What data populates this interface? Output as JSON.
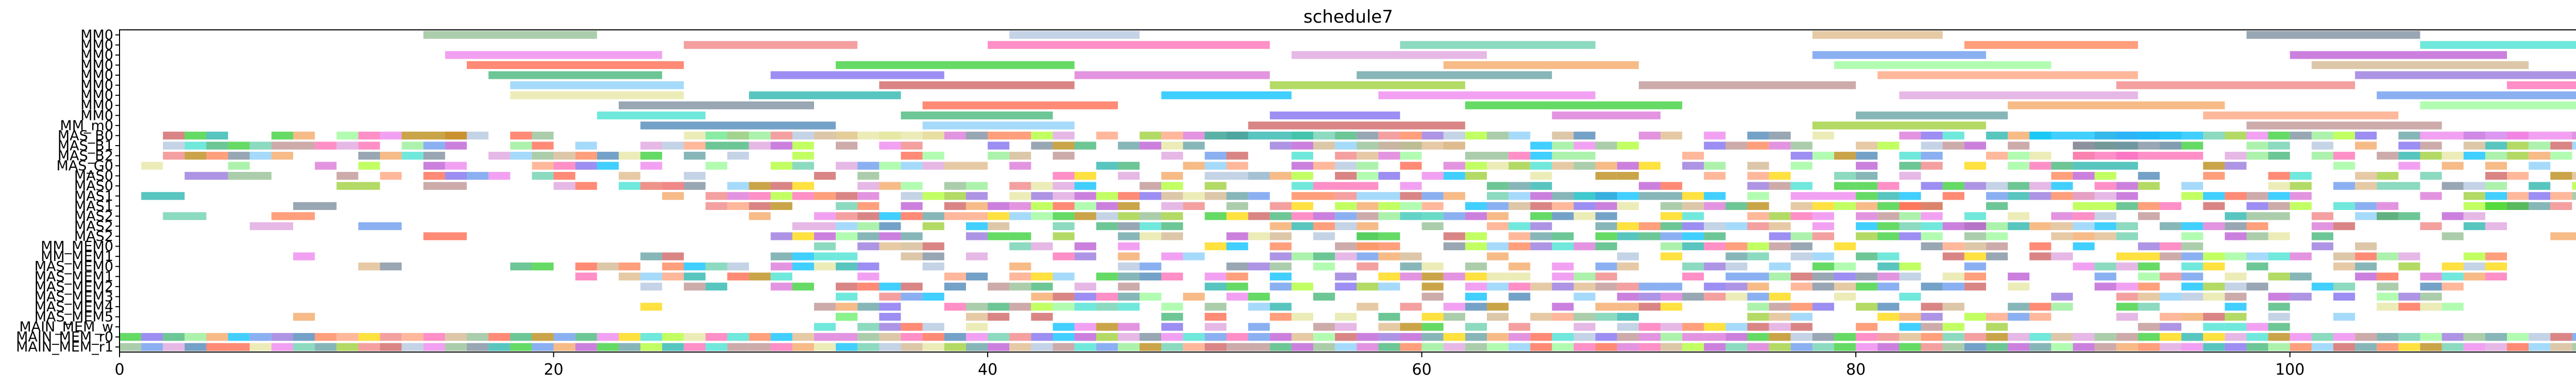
{
  "chart_data": {
    "type": "gantt",
    "title": "schedule7",
    "xlabel": "",
    "ylabel": "",
    "xlim": [
      0,
      118
    ],
    "x_ticks": [
      0,
      20,
      40,
      60,
      80,
      100
    ],
    "grid": false,
    "legend": "none",
    "rows": [
      "MM0",
      "MM0",
      "MM0",
      "MM0",
      "MM0",
      "MM0",
      "MM0",
      "MM0",
      "MM0",
      "MM_m0",
      "MAS_B0",
      "MAS_B1",
      "MAS_B2",
      "MAS_G0",
      "MAS0",
      "MAS0",
      "MAS1",
      "MAS1",
      "MAS2",
      "MAS2",
      "MAS2",
      "MM_MEM0",
      "MM_MEM1",
      "MAS_MEM0",
      "MAS_MEM1",
      "MAS_MEM2",
      "MAS_MEM3",
      "MAS_MEM4",
      "MAS_MEM5",
      "MAIN_MEM_w",
      "MAIN_MEM_r0",
      "MAIN_MEM_r1"
    ],
    "tasks": [
      {
        "row": 0,
        "start": 14,
        "end": 22
      },
      {
        "row": 0,
        "start": 41,
        "end": 47
      },
      {
        "row": 0,
        "start": 78,
        "end": 84
      },
      {
        "row": 0,
        "start": 98,
        "end": 106
      },
      {
        "row": 1,
        "start": 26,
        "end": 34
      },
      {
        "row": 1,
        "start": 40,
        "end": 53
      },
      {
        "row": 1,
        "start": 59,
        "end": 68
      },
      {
        "row": 1,
        "start": 85,
        "end": 93
      },
      {
        "row": 1,
        "start": 106,
        "end": 115
      },
      {
        "row": 2,
        "start": 15,
        "end": 25
      },
      {
        "row": 2,
        "start": 54,
        "end": 63
      },
      {
        "row": 2,
        "start": 78,
        "end": 86
      },
      {
        "row": 2,
        "start": 100,
        "end": 110
      },
      {
        "row": 3,
        "start": 16,
        "end": 26
      },
      {
        "row": 3,
        "start": 33,
        "end": 44
      },
      {
        "row": 3,
        "start": 61,
        "end": 70
      },
      {
        "row": 3,
        "start": 79,
        "end": 89
      },
      {
        "row": 3,
        "start": 101,
        "end": 111
      },
      {
        "row": 4,
        "start": 17,
        "end": 25
      },
      {
        "row": 4,
        "start": 30,
        "end": 38
      },
      {
        "row": 4,
        "start": 44,
        "end": 53
      },
      {
        "row": 4,
        "start": 57,
        "end": 66
      },
      {
        "row": 4,
        "start": 81,
        "end": 93
      },
      {
        "row": 4,
        "start": 103,
        "end": 114
      },
      {
        "row": 5,
        "start": 18,
        "end": 26
      },
      {
        "row": 5,
        "start": 35,
        "end": 44
      },
      {
        "row": 5,
        "start": 53,
        "end": 62
      },
      {
        "row": 5,
        "start": 70,
        "end": 80
      },
      {
        "row": 5,
        "start": 92,
        "end": 103
      },
      {
        "row": 5,
        "start": 110,
        "end": 117
      },
      {
        "row": 6,
        "start": 18,
        "end": 26
      },
      {
        "row": 6,
        "start": 29,
        "end": 36
      },
      {
        "row": 6,
        "start": 48,
        "end": 54
      },
      {
        "row": 6,
        "start": 58,
        "end": 68
      },
      {
        "row": 6,
        "start": 82,
        "end": 93
      },
      {
        "row": 6,
        "start": 104,
        "end": 115
      },
      {
        "row": 7,
        "start": 23,
        "end": 32
      },
      {
        "row": 7,
        "start": 37,
        "end": 46
      },
      {
        "row": 7,
        "start": 62,
        "end": 72
      },
      {
        "row": 7,
        "start": 87,
        "end": 97
      },
      {
        "row": 7,
        "start": 106,
        "end": 118
      },
      {
        "row": 8,
        "start": 22,
        "end": 27
      },
      {
        "row": 8,
        "start": 36,
        "end": 43
      },
      {
        "row": 8,
        "start": 53,
        "end": 59
      },
      {
        "row": 8,
        "start": 66,
        "end": 71
      },
      {
        "row": 8,
        "start": 80,
        "end": 87
      },
      {
        "row": 8,
        "start": 96,
        "end": 105
      },
      {
        "row": 9,
        "start": 24,
        "end": 33
      },
      {
        "row": 9,
        "start": 37,
        "end": 44
      },
      {
        "row": 9,
        "start": 52,
        "end": 62
      },
      {
        "row": 9,
        "start": 78,
        "end": 86
      },
      {
        "row": 9,
        "start": 98,
        "end": 107
      },
      {
        "row": 10,
        "start": 13,
        "end": 16
      },
      {
        "row": 10,
        "start": 27,
        "end": 30
      },
      {
        "row": 10,
        "start": 33,
        "end": 38
      },
      {
        "row": 10,
        "start": 50,
        "end": 55
      },
      {
        "row": 10,
        "start": 88,
        "end": 96
      },
      {
        "row": 10,
        "start": 106,
        "end": 114
      },
      {
        "row": 11,
        "start": 2,
        "end": 3
      },
      {
        "row": 11,
        "start": 58,
        "end": 62
      },
      {
        "row": 11,
        "start": 90,
        "end": 95
      },
      {
        "row": 12,
        "start": 2,
        "end": 3
      },
      {
        "row": 12,
        "start": 90,
        "end": 95
      },
      {
        "row": 13,
        "start": 1,
        "end": 2
      },
      {
        "row": 13,
        "start": 90,
        "end": 93
      },
      {
        "row": 14,
        "start": 3,
        "end": 5
      },
      {
        "row": 14,
        "start": 5,
        "end": 7
      },
      {
        "row": 14,
        "start": 50,
        "end": 53
      },
      {
        "row": 15,
        "start": 10,
        "end": 12
      },
      {
        "row": 15,
        "start": 14,
        "end": 16
      },
      {
        "row": 15,
        "start": 24,
        "end": 26
      },
      {
        "row": 15,
        "start": 55,
        "end": 58
      },
      {
        "row": 15,
        "start": 104,
        "end": 106
      },
      {
        "row": 16,
        "start": 1,
        "end": 3
      },
      {
        "row": 16,
        "start": 67,
        "end": 70
      },
      {
        "row": 16,
        "start": 78,
        "end": 80
      },
      {
        "row": 16,
        "start": 90,
        "end": 92
      },
      {
        "row": 16,
        "start": 114,
        "end": 116
      },
      {
        "row": 17,
        "start": 8,
        "end": 10
      },
      {
        "row": 17,
        "start": 82,
        "end": 84
      },
      {
        "row": 17,
        "start": 109,
        "end": 111
      },
      {
        "row": 18,
        "start": 2,
        "end": 4
      },
      {
        "row": 18,
        "start": 7,
        "end": 9
      },
      {
        "row": 18,
        "start": 59,
        "end": 61
      },
      {
        "row": 18,
        "start": 104,
        "end": 106
      },
      {
        "row": 19,
        "start": 6,
        "end": 8
      },
      {
        "row": 19,
        "start": 11,
        "end": 13
      },
      {
        "row": 19,
        "start": 84,
        "end": 86
      },
      {
        "row": 20,
        "start": 14,
        "end": 16
      },
      {
        "row": 20,
        "start": 57,
        "end": 59
      },
      {
        "row": 20,
        "start": 112,
        "end": 114
      },
      {
        "row": 21,
        "start": 57,
        "end": 59
      },
      {
        "row": 21,
        "start": 114,
        "end": 116
      },
      {
        "row": 22,
        "start": 8,
        "end": 9
      },
      {
        "row": 22,
        "start": 114,
        "end": 116
      },
      {
        "row": 23,
        "start": 11,
        "end": 12
      },
      {
        "row": 23,
        "start": 12,
        "end": 13
      },
      {
        "row": 23,
        "start": 21,
        "end": 22
      },
      {
        "row": 24,
        "start": 21,
        "end": 22
      },
      {
        "row": 24,
        "start": 114,
        "end": 116
      },
      {
        "row": 27,
        "start": 24,
        "end": 25
      },
      {
        "row": 27,
        "start": 62,
        "end": 63
      },
      {
        "row": 28,
        "start": 8,
        "end": 9
      },
      {
        "row": 28,
        "start": 33,
        "end": 34
      },
      {
        "row": 29,
        "start": 32,
        "end": 33
      },
      {
        "row": 29,
        "start": 99,
        "end": 100
      }
    ],
    "dense_fill": [
      {
        "row": 10,
        "from": 2,
        "to": 118,
        "density": 0.7
      },
      {
        "row": 11,
        "from": 3,
        "to": 118,
        "density": 0.7
      },
      {
        "row": 12,
        "from": 3,
        "to": 118,
        "density": 0.6
      },
      {
        "row": 13,
        "from": 5,
        "to": 118,
        "density": 0.55
      },
      {
        "row": 14,
        "from": 10,
        "to": 118,
        "density": 0.5
      },
      {
        "row": 15,
        "from": 17,
        "to": 118,
        "density": 0.55
      },
      {
        "row": 16,
        "from": 25,
        "to": 118,
        "density": 0.75
      },
      {
        "row": 17,
        "from": 27,
        "to": 118,
        "density": 0.75
      },
      {
        "row": 18,
        "from": 29,
        "to": 110,
        "density": 0.7
      },
      {
        "row": 19,
        "from": 30,
        "to": 110,
        "density": 0.7
      },
      {
        "row": 20,
        "from": 30,
        "to": 108,
        "density": 0.65
      },
      {
        "row": 21,
        "from": 30,
        "to": 106,
        "density": 0.6
      },
      {
        "row": 22,
        "from": 24,
        "to": 110,
        "density": 0.55
      },
      {
        "row": 23,
        "from": 14,
        "to": 110,
        "density": 0.55
      },
      {
        "row": 24,
        "from": 22,
        "to": 110,
        "density": 0.6
      },
      {
        "row": 25,
        "from": 24,
        "to": 108,
        "density": 0.6
      },
      {
        "row": 26,
        "from": 31,
        "to": 108,
        "density": 0.65
      },
      {
        "row": 27,
        "from": 31,
        "to": 108,
        "density": 0.6
      },
      {
        "row": 28,
        "from": 33,
        "to": 104,
        "density": 0.55
      },
      {
        "row": 29,
        "from": 34,
        "to": 102,
        "density": 0.5
      },
      {
        "row": 30,
        "from": 0,
        "to": 117,
        "density": 1.0
      },
      {
        "row": 31,
        "from": 0,
        "to": 117,
        "density": 1.0
      }
    ],
    "palette": [
      "#8fbc8f",
      "#7b68ee",
      "#ff69b4",
      "#87cefa",
      "#dda0dd",
      "#90ee90",
      "#f4a460",
      "#b0c4de",
      "#da70d6",
      "#66cdaa",
      "#cd5c5c",
      "#6495ed",
      "#e6e6a0",
      "#98fb98",
      "#deb887",
      "#5f9ea0",
      "#ff7f50",
      "#9acd32",
      "#ba55d3",
      "#20b2aa",
      "#d2b48c",
      "#778899",
      "#ffa07a",
      "#40e0d0",
      "#bc8f8f",
      "#ffd700",
      "#00bfff",
      "#adff2f",
      "#ff6347",
      "#9370db",
      "#3cb371",
      "#f08080",
      "#4682b4",
      "#ee82ee",
      "#b8860b",
      "#32cd32"
    ],
    "bar_alpha": 0.75
  }
}
